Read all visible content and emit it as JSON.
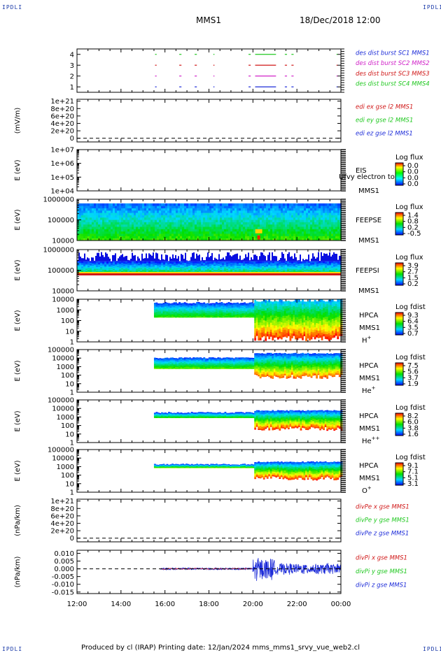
{
  "header": {
    "mission": "MMS1",
    "datetime": "18/Dec/2018 12:00",
    "corner_left_top": "IPDLI",
    "corner_right_top": "IPDLI",
    "corner_left_bottom": "IPDLI",
    "corner_right_bottom": "IPDLI"
  },
  "footer": {
    "text": "Produced by cl (IRAP)   Printing date: 12/Jan/2024   mms_mms1_srvy_vue_web2.cl"
  },
  "colors": {
    "blue": "#1c2bd8",
    "magenta": "#d020c8",
    "red": "#d01818",
    "green": "#20c820"
  },
  "chart_data": {
    "type": "stacked-timeseries-panels",
    "x_range": [
      "12:00",
      "00:00"
    ],
    "x_ticks": [
      "12:00",
      "14:00",
      "16:00",
      "18:00",
      "20:00",
      "22:00",
      "00:00"
    ],
    "panels": [
      {
        "id": "burst",
        "type": "segments",
        "ylabel": "",
        "ylim": [
          0.5,
          4.5
        ],
        "y_ticks": [
          "1",
          "2",
          "3",
          "4"
        ],
        "legend": [
          {
            "text": "des dist burst SC1 MMS1",
            "color": "#1c2bd8"
          },
          {
            "text": "des dist burst SC2 MMS2",
            "color": "#d020c8"
          },
          {
            "text": "des dist burst SC3 MMS3",
            "color": "#d01818"
          },
          {
            "text": "des dist burst SC4 MMS4",
            "color": "#20c820"
          }
        ]
      },
      {
        "id": "edi",
        "type": "line",
        "ylabel": "(mV/m)",
        "ylim": [
          -1e+20,
          1.05e+21
        ],
        "y_ticks": [
          "0",
          "2e+20",
          "4e+20",
          "6e+20",
          "8e+20",
          "1e+21"
        ],
        "legend": [
          {
            "text": "edi ex gse l2 MMS1",
            "color": "#d01818"
          },
          {
            "text": "edi ey gse l2 MMS1",
            "color": "#20c820"
          },
          {
            "text": "edi ez gse l2 MMS1",
            "color": "#1c2bd8"
          }
        ]
      },
      {
        "id": "eis",
        "type": "spectrogram",
        "ylabel": "E (eV)",
        "y_ticks": [
          "1e+04",
          "1e+05",
          "1e+06",
          "1e+07"
        ],
        "labels": [
          "EIS",
          "MMS1"
        ],
        "overlay_text": "Ufvy electron to",
        "colorbar": {
          "title": "Log flux",
          "ticks": [
            "0.0",
            "0.0",
            "0.0",
            "0.0"
          ]
        }
      },
      {
        "id": "feepse",
        "type": "spectrogram",
        "ylabel": "E (eV)",
        "y_ticks": [
          "10000",
          "100000",
          "1000000"
        ],
        "labels": [
          "FEEPSE",
          "MMS1"
        ],
        "colorbar": {
          "title": "Log flux",
          "ticks": [
            "1.4",
            "0.8",
            "0.2",
            "-0.5"
          ]
        }
      },
      {
        "id": "feepsi",
        "type": "spectrogram",
        "ylabel": "E (eV)",
        "y_ticks": [
          "10000",
          "100000",
          "1000000"
        ],
        "labels": [
          "FEEPSI",
          "MMS1"
        ],
        "colorbar": {
          "title": "Log flux",
          "ticks": [
            "3.9",
            "2.7",
            "1.5",
            "0.2"
          ]
        }
      },
      {
        "id": "hpca_h",
        "type": "spectrogram",
        "ylabel": "E (eV)",
        "y_ticks": [
          "1",
          "10",
          "100",
          "1000",
          "10000"
        ],
        "labels": [
          "HPCA",
          "MMS1"
        ],
        "species": "H",
        "charge": "+",
        "colorbar": {
          "title": "Log fdist",
          "ticks": [
            "9.3",
            "6.4",
            "3.5",
            "0.7"
          ]
        }
      },
      {
        "id": "hpca_he",
        "type": "spectrogram",
        "ylabel": "E (eV)",
        "y_ticks": [
          "1",
          "10",
          "100",
          "1000",
          "10000",
          "100000"
        ],
        "labels": [
          "HPCA",
          "MMS1"
        ],
        "species": "He",
        "charge": "+",
        "colorbar": {
          "title": "Log fdist",
          "ticks": [
            "7.5",
            "5.6",
            "3.7",
            "1.9"
          ]
        }
      },
      {
        "id": "hpca_hepp",
        "type": "spectrogram",
        "ylabel": "E (eV)",
        "y_ticks": [
          "1",
          "10",
          "100",
          "1000",
          "10000",
          "100000"
        ],
        "labels": [
          "HPCA",
          "MMS1"
        ],
        "species": "He",
        "charge": "++",
        "colorbar": {
          "title": "Log fdist",
          "ticks": [
            "8.2",
            "6.0",
            "3.8",
            "1.6"
          ]
        }
      },
      {
        "id": "hpca_o",
        "type": "spectrogram",
        "ylabel": "E (eV)",
        "y_ticks": [
          "1",
          "10",
          "100",
          "1000",
          "10000",
          "100000"
        ],
        "labels": [
          "HPCA",
          "MMS1"
        ],
        "species": "O",
        "charge": "+",
        "colorbar": {
          "title": "Log fdist",
          "ticks": [
            "9.1",
            "7.1",
            "5.1",
            "3.1"
          ]
        }
      },
      {
        "id": "divpe",
        "type": "line",
        "ylabel": "(nPa/km)",
        "ylim": [
          -1e+20,
          1.05e+21
        ],
        "y_ticks": [
          "0",
          "2e+20",
          "4e+20",
          "6e+20",
          "8e+20",
          "1e+21"
        ],
        "legend": [
          {
            "text": "divPe x gse MMS1",
            "color": "#d01818"
          },
          {
            "text": "divPe y gse MMS1",
            "color": "#20c820"
          },
          {
            "text": "divPe z gse MMS1",
            "color": "#1c2bd8"
          }
        ]
      },
      {
        "id": "divpi",
        "type": "line",
        "ylabel": "(nPa/km)",
        "ylim": [
          -0.016,
          0.012
        ],
        "y_ticks": [
          "-0.015",
          "-0.010",
          "-0.005",
          "0.000",
          "0.005",
          "0.010"
        ],
        "legend": [
          {
            "text": "divPi x gse MMS1",
            "color": "#d01818"
          },
          {
            "text": "divPi y gse MMS1",
            "color": "#20c820"
          },
          {
            "text": "divPi z gse MMS1",
            "color": "#1c2bd8"
          }
        ]
      }
    ]
  }
}
